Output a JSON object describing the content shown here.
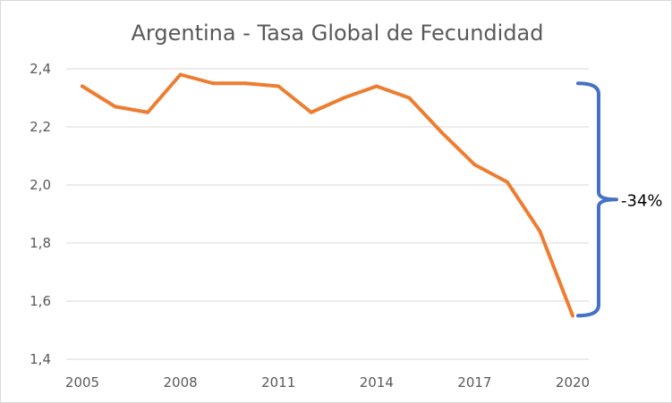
{
  "chart_data": {
    "type": "line",
    "title": "Argentina - Tasa Global de Fecundidad",
    "xlabel": "",
    "ylabel": "",
    "x": [
      2005,
      2006,
      2007,
      2008,
      2009,
      2010,
      2011,
      2012,
      2013,
      2014,
      2015,
      2016,
      2017,
      2018,
      2019,
      2020
    ],
    "series": [
      {
        "name": "Tasa Global de Fecundidad",
        "values": [
          2.34,
          2.27,
          2.25,
          2.38,
          2.35,
          2.35,
          2.34,
          2.25,
          2.3,
          2.34,
          2.3,
          2.18,
          2.07,
          2.01,
          1.84,
          1.55
        ],
        "color": "#ed7d31"
      }
    ],
    "ylim": [
      1.4,
      2.4
    ],
    "yticks": [
      1.4,
      1.6,
      1.8,
      2.0,
      2.2,
      2.4
    ],
    "ytick_labels": [
      "1,4",
      "1,6",
      "1,8",
      "2,0",
      "2,2",
      "2,4"
    ],
    "xticks": [
      2005,
      2008,
      2011,
      2014,
      2017,
      2020
    ],
    "xtick_labels": [
      "2005",
      "2008",
      "2011",
      "2014",
      "2017",
      "2020"
    ],
    "grid": true,
    "legend": "none",
    "annotation": {
      "text": "-34%",
      "bracket_from": 2.35,
      "bracket_to": 1.55,
      "color": "#4472c4"
    }
  }
}
